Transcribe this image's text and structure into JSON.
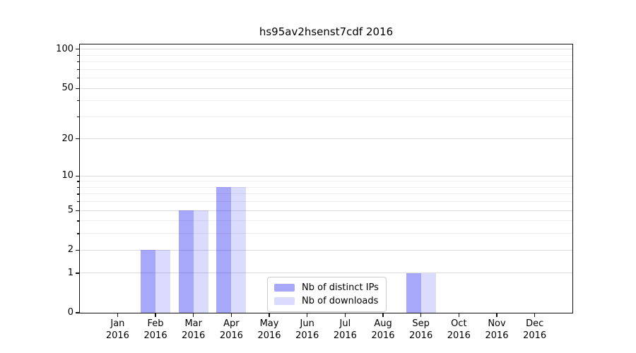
{
  "title": "hs95av2hsenst7cdf 2016",
  "chart_data": {
    "type": "bar",
    "title": "hs95av2hsenst7cdf 2016",
    "x_categories": [
      "Jan",
      "Feb",
      "Mar",
      "Apr",
      "May",
      "Jun",
      "Jul",
      "Aug",
      "Sep",
      "Oct",
      "Nov",
      "Dec"
    ],
    "x_year": "2016",
    "series": [
      {
        "name": "Nb of distinct IPs",
        "color": "rgba(0,0,240,0.34)",
        "values": [
          0,
          2,
          5,
          8,
          0,
          0,
          0,
          0,
          1,
          0,
          0,
          0
        ]
      },
      {
        "name": "Nb of downloads",
        "color": "rgba(0,0,240,0.14)",
        "values": [
          0,
          2,
          5,
          8,
          0,
          0,
          0,
          0,
          1,
          0,
          0,
          0
        ]
      }
    ],
    "yscale": "log1p",
    "ylim": [
      0,
      109
    ],
    "yticks": [
      0,
      1,
      2,
      5,
      10,
      20,
      50,
      100
    ],
    "yticks_minor": [
      3,
      4,
      6,
      7,
      8,
      9,
      30,
      40,
      60,
      70,
      80,
      90
    ],
    "grid": true,
    "legend_position": "lower center",
    "colors": {
      "grid_major": "#dcdcdc",
      "grid_minor": "#efefef",
      "spine": "#111111"
    }
  }
}
